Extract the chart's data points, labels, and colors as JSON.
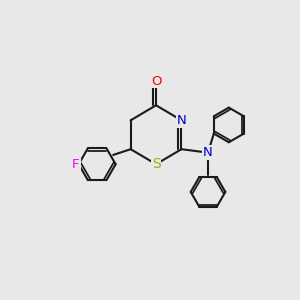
{
  "bg_color": "#e8e8e8",
  "bond_color": "#1a1a1a",
  "bond_width": 1.5,
  "atom_colors": {
    "O": "#ff0000",
    "N": "#0000cc",
    "S": "#aaaa00",
    "F": "#ff00ff",
    "C": "#1a1a1a"
  },
  "font_size": 9.5,
  "fig_bg": "#e8e8e8"
}
